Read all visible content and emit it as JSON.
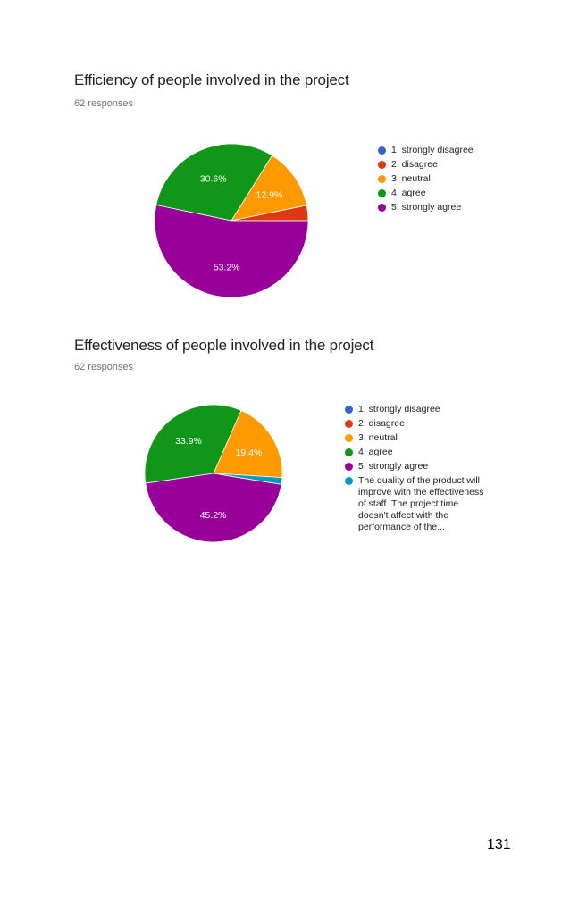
{
  "chart_data": [
    {
      "type": "pie",
      "title": "Efficiency of people involved in the project",
      "subtitle": "62 responses",
      "categories": [
        "1. strongly disagree",
        "2. disagree",
        "3. neutral",
        "4. agree",
        "5. strongly agree"
      ],
      "values": [
        0,
        3.2,
        12.9,
        30.6,
        53.2
      ],
      "data_labels": [
        "",
        "",
        "12.9%",
        "30.6%",
        "53.2%"
      ],
      "colors": [
        "#3366CC",
        "#DC3912",
        "#FF9900",
        "#109618",
        "#990099"
      ],
      "legend_position": "right"
    },
    {
      "type": "pie",
      "title": "Effectiveness of people involved in the project",
      "subtitle": "62 responses",
      "categories": [
        "1. strongly disagree",
        "2. disagree",
        "3. neutral",
        "4. agree",
        "5. strongly agree",
        "The quality of the product will improve with the effectiveness of staff. The project time doesn't affect with the performance of the..."
      ],
      "values": [
        0,
        0,
        19.4,
        33.9,
        45.2,
        1.6
      ],
      "data_labels": [
        "",
        "",
        "19.4%",
        "33.9%",
        "45.2%",
        ""
      ],
      "colors": [
        "#3366CC",
        "#DC3912",
        "#FF9900",
        "#109618",
        "#990099",
        "#0099C6"
      ],
      "legend_position": "right"
    }
  ],
  "page_number": "131"
}
